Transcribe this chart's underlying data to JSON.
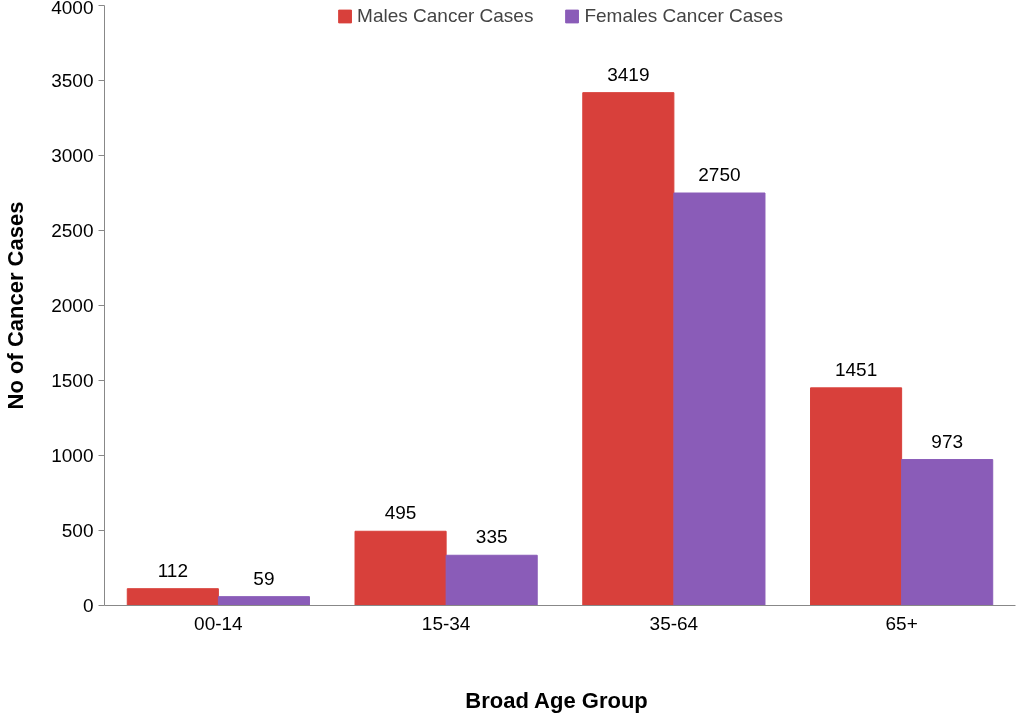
{
  "chart_data": {
    "type": "bar",
    "xlabel": "Broad Age  Group",
    "ylabel": "No of Cancer Cases",
    "categories": [
      "00-14",
      "15-34",
      "35-64",
      "65+"
    ],
    "series": [
      {
        "name": "Males Cancer Cases",
        "color": "#d8403b",
        "values": [
          112,
          495,
          3419,
          1451
        ]
      },
      {
        "name": "Females Cancer Cases",
        "color": "#8a5cb8",
        "values": [
          59,
          335,
          2750,
          973
        ]
      }
    ],
    "ylim": [
      0,
      4000
    ],
    "yticks": [
      0,
      500,
      1000,
      1500,
      2000,
      2500,
      3000,
      3500,
      4000
    ],
    "data_labels": true,
    "legend": "top",
    "grid": false
  }
}
